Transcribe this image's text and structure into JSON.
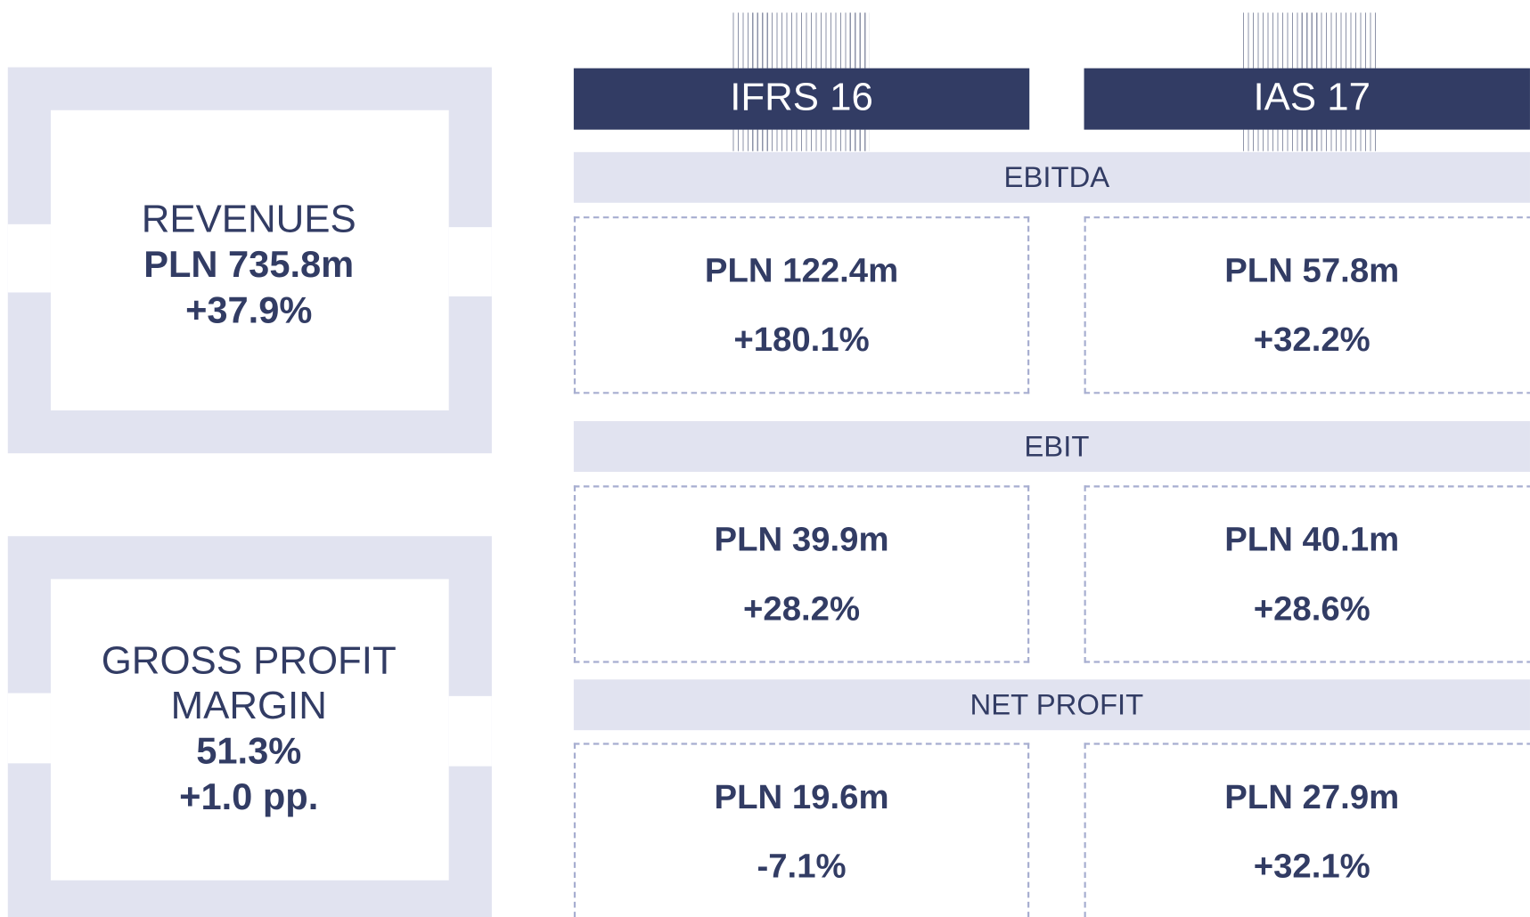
{
  "cards": [
    {
      "label": "REVENUES",
      "value": "PLN 735.8m",
      "change": "+37.9%"
    },
    {
      "label": "GROSS PROFIT MARGIN",
      "value": "51.3%",
      "change": "+1.0 pp."
    }
  ],
  "columns": [
    "IFRS 16",
    "IAS 17"
  ],
  "sections": [
    {
      "title": "EBITDA",
      "cells": [
        {
          "value": "PLN 122.4m",
          "change": "+180.1%"
        },
        {
          "value": "PLN 57.8m",
          "change": "+32.2%"
        }
      ]
    },
    {
      "title": "EBIT",
      "cells": [
        {
          "value": "PLN 39.9m",
          "change": "+28.2%"
        },
        {
          "value": "PLN 40.1m",
          "change": "+28.6%"
        }
      ]
    },
    {
      "title": "NET PROFIT",
      "cells": [
        {
          "value": "PLN 19.6m",
          "change": "-7.1%"
        },
        {
          "value": "PLN 27.9m",
          "change": "+32.1%"
        }
      ]
    }
  ]
}
